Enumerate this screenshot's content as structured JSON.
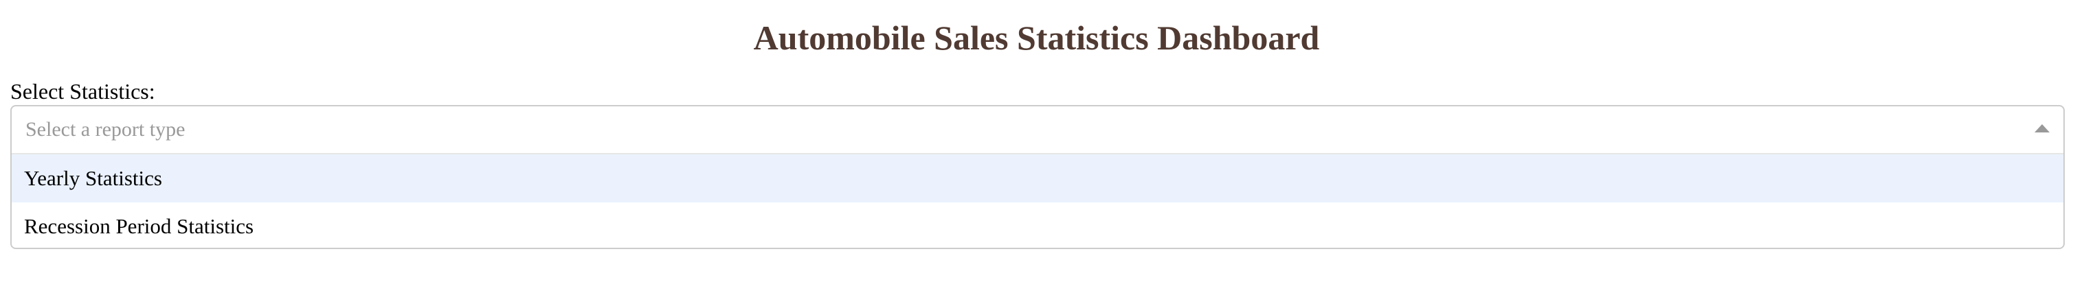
{
  "header": {
    "title": "Automobile Sales Statistics Dashboard"
  },
  "report_select": {
    "label": "Select Statistics:",
    "placeholder": "Select a report type",
    "expanded": true,
    "options": [
      {
        "label": "Yearly Statistics",
        "focused": true
      },
      {
        "label": "Recession Period Statistics",
        "focused": false
      }
    ]
  },
  "colors": {
    "title": "#503a32",
    "placeholder": "#999999",
    "focused_option_bg": "#ebf2fe",
    "border": "#cccccc"
  },
  "icons": {
    "dropdown_arrow": "caret-up-icon"
  }
}
